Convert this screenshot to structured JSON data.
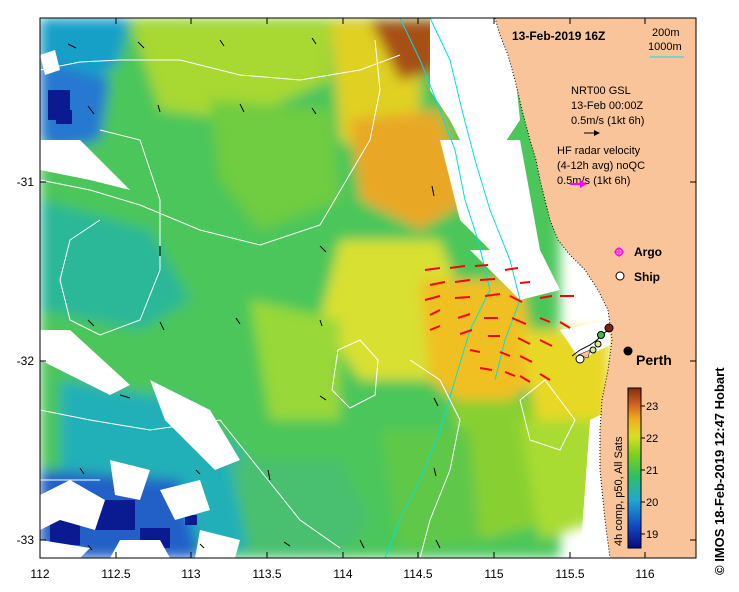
{
  "map": {
    "title": "13-Feb-2019 16Z",
    "depth_contours": [
      "200m",
      "1000m"
    ],
    "nrt_label": {
      "line1": "NRT00 GSL",
      "line2": "13-Feb 00:00Z",
      "line3": "0.5m/s (1kt 6h)"
    },
    "hf_label": {
      "line1": "HF radar velocity",
      "line2": "(4-12h avg) noQC",
      "line3": "0.5m/s (1kt 6h)"
    },
    "legend": {
      "argo": "Argo",
      "ship": "Ship"
    },
    "city": "Perth",
    "colorbar": {
      "label": "4h comp, p50, All Sats",
      "ticks": [
        "19",
        "20",
        "21",
        "22",
        "23"
      ],
      "min": 18.6,
      "max": 23.6
    },
    "x_ticks": [
      "112",
      "112.5",
      "113",
      "113.5",
      "114",
      "114.5",
      "115",
      "115.5",
      "116"
    ],
    "y_ticks": [
      "-31",
      "-32",
      "-33"
    ],
    "credit": "© IMOS 18-Feb-2019 12:47 Hobart"
  },
  "colors": {
    "land": "#f9c49a",
    "contour_200m": "#ffffff",
    "contour_1000m": "#00e0e0",
    "hf_arrow": "#ff0000",
    "nrt_arrow": "#000000",
    "argo_marker": "#ff00ff"
  },
  "icons": [
    "perth-city-marker",
    "argo-marker-icon",
    "ship-marker-icon"
  ]
}
